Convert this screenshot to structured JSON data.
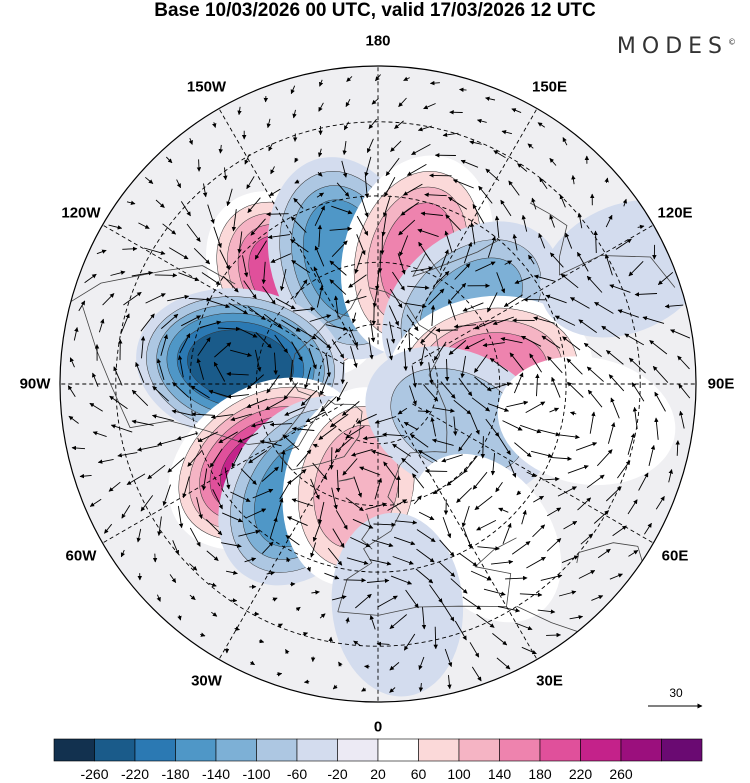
{
  "title": "Base 10/03/2026 00 UTC, valid 17/03/2026 12 UTC",
  "brand": "MODES",
  "brand_mark": "©",
  "longitude_labels": [
    {
      "text": "180",
      "lon": 180
    },
    {
      "text": "150E",
      "lon": 150
    },
    {
      "text": "120E",
      "lon": 120
    },
    {
      "text": "90E",
      "lon": 90
    },
    {
      "text": "60E",
      "lon": 60
    },
    {
      "text": "30E",
      "lon": 30
    },
    {
      "text": "0",
      "lon": 0
    },
    {
      "text": "30W",
      "lon": -30
    },
    {
      "text": "60W",
      "lon": -60
    },
    {
      "text": "90W",
      "lon": -90
    },
    {
      "text": "120W",
      "lon": -120
    },
    {
      "text": "150W",
      "lon": -150
    }
  ],
  "reference_vector": {
    "label": "30"
  },
  "colorbar": {
    "ticks": [
      "-260",
      "-220",
      "-180",
      "-140",
      "-100",
      "-60",
      "-20",
      "20",
      "60",
      "100",
      "140",
      "180",
      "220",
      "260"
    ],
    "colors": [
      "#12314f",
      "#1a5b8a",
      "#2b79b3",
      "#4f97c7",
      "#7db0d6",
      "#adc7e2",
      "#d3dcee",
      "#eceaf4",
      "#ffffff",
      "#fbd9d9",
      "#f5b4c4",
      "#ee83ae",
      "#e0509b",
      "#c4228a",
      "#9b0f7d",
      "#6a0a72"
    ]
  },
  "anomaly_centers": [
    {
      "lon": -140,
      "lat": 58,
      "value": 200
    },
    {
      "lon": -165,
      "lat": 58,
      "value": -160
    },
    {
      "lon": 163,
      "lat": 57,
      "value": 140
    },
    {
      "lon": 130,
      "lat": 60,
      "value": -100
    },
    {
      "lon": 97,
      "lat": 62,
      "value": 150
    },
    {
      "lon": -98,
      "lat": 56,
      "value": -240
    },
    {
      "lon": -55,
      "lat": 56,
      "value": 220
    },
    {
      "lon": -35,
      "lat": 58,
      "value": -170
    },
    {
      "lon": -12,
      "lat": 64,
      "value": 110
    },
    {
      "lon": 65,
      "lat": 68,
      "value": -70
    },
    {
      "lon": 35,
      "lat": 45,
      "value": 40
    },
    {
      "lon": 5,
      "lat": 38,
      "value": -40
    },
    {
      "lon": 80,
      "lat": 40,
      "value": 30
    },
    {
      "lon": 115,
      "lat": 28,
      "value": -30
    }
  ]
}
